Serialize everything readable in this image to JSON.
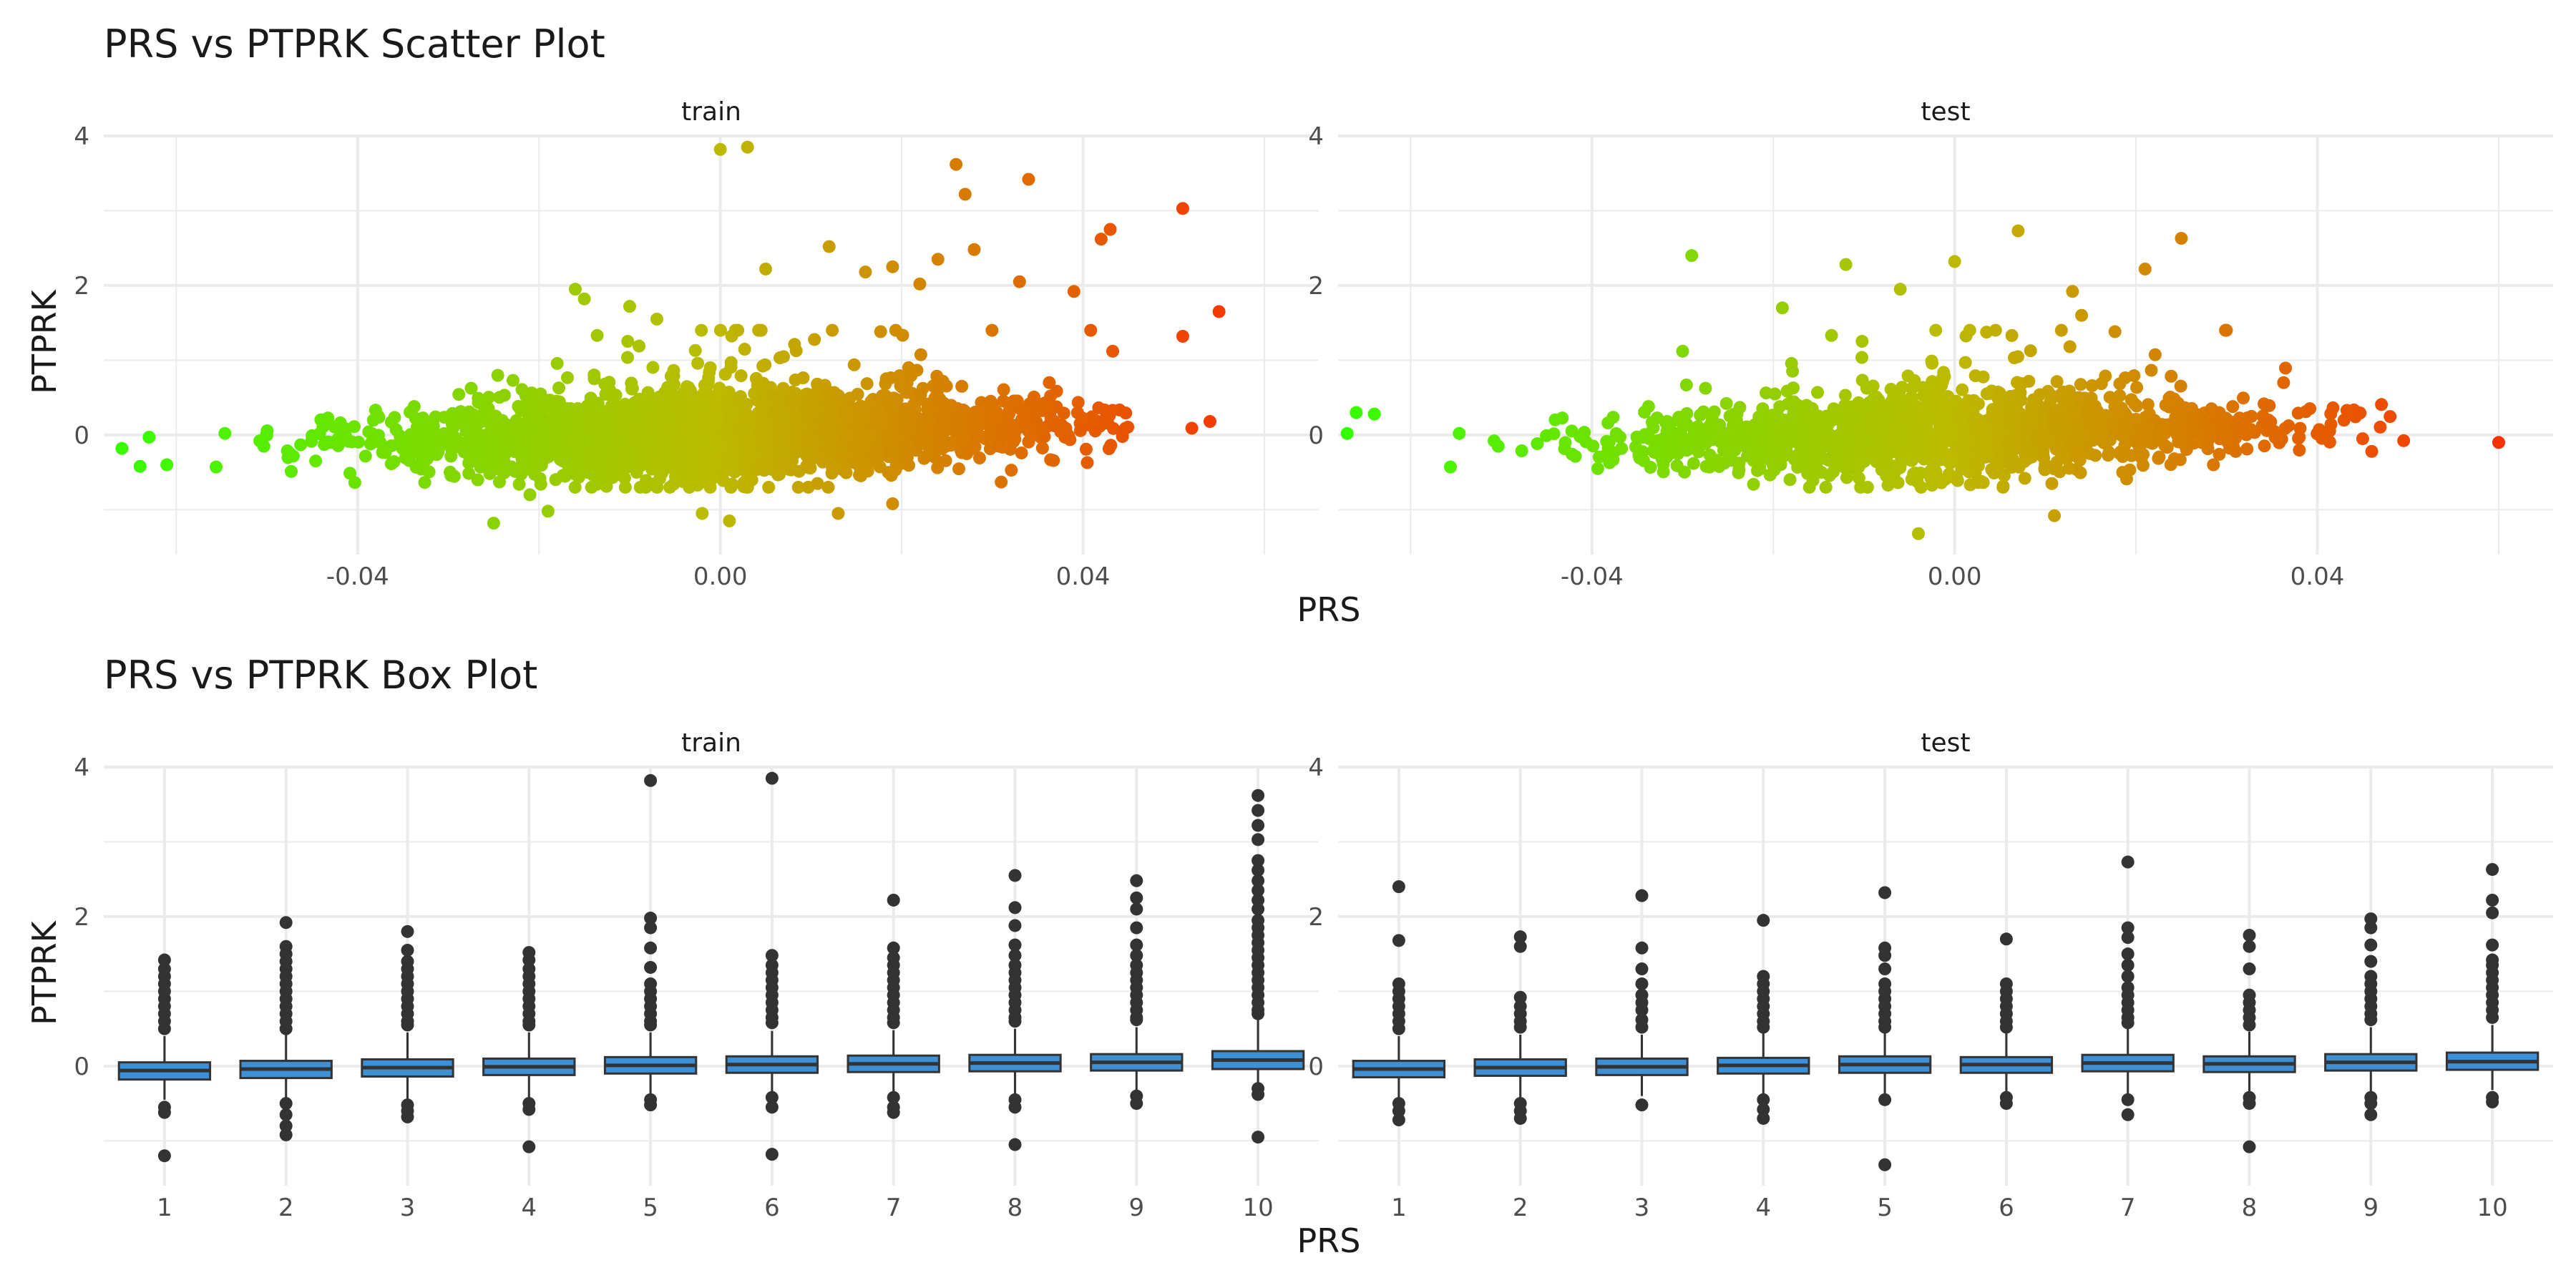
{
  "titles": {
    "scatter": "PRS vs PTPRK Scatter Plot",
    "box": "PRS vs PTPRK Box Plot"
  },
  "panels": [
    "train",
    "test"
  ],
  "axis": {
    "xlabel": "PRS",
    "ylabel": "PTPRK"
  },
  "scatter_ticks": {
    "x": [
      -0.04,
      0.0,
      0.04
    ],
    "x_labels": [
      "-0.04",
      "0.00",
      "0.04"
    ],
    "y": [
      0,
      2,
      4
    ],
    "y_labels": [
      "0",
      "2",
      "4"
    ]
  },
  "box_ticks": {
    "x_labels": [
      "1",
      "2",
      "3",
      "4",
      "5",
      "6",
      "7",
      "8",
      "9",
      "10"
    ],
    "y": [
      0,
      2,
      4
    ],
    "y_labels": [
      "0",
      "2",
      "4"
    ]
  },
  "colors": {
    "gradient_low": "#33ff00",
    "gradient_mid": "#bbbb00",
    "gradient_high": "#ff2200",
    "box_fill": "#3d8fd6",
    "box_stroke": "#333333",
    "outlier": "#333333",
    "grid": "#ebebeb"
  },
  "chart_data": [
    {
      "type": "scatter",
      "title": "PRS vs PTPRK Scatter Plot",
      "xlabel": "PRS",
      "ylabel": "PTPRK",
      "facets": [
        "train",
        "test"
      ],
      "xlim": [
        -0.068,
        0.066
      ],
      "ylim": [
        -1.6,
        4.0
      ],
      "color_scale": "color encodes PRS (green low, red high)",
      "series": [
        {
          "name": "train",
          "x_range": [
            -0.066,
            0.055
          ],
          "points": [
            [
              0.0,
              3.82
            ],
            [
              0.003,
              3.85
            ],
            [
              0.026,
              3.62
            ],
            [
              0.034,
              3.42
            ],
            [
              0.051,
              3.03
            ],
            [
              0.055,
              1.65
            ],
            [
              0.051,
              1.32
            ],
            [
              0.043,
              2.75
            ],
            [
              0.042,
              2.62
            ],
            [
              0.039,
              1.92
            ],
            [
              0.027,
              3.22
            ],
            [
              0.012,
              2.52
            ],
            [
              0.016,
              2.18
            ],
            [
              0.019,
              2.25
            ],
            [
              0.028,
              2.48
            ],
            [
              0.033,
              2.05
            ],
            [
              0.005,
              2.22
            ],
            [
              0.024,
              2.35
            ],
            [
              -0.007,
              1.55
            ],
            [
              -0.016,
              1.95
            ],
            [
              -0.015,
              1.82
            ],
            [
              -0.01,
              1.72
            ],
            [
              0.022,
              2.02
            ],
            [
              -0.025,
              -1.18
            ],
            [
              -0.019,
              -1.02
            ],
            [
              -0.002,
              -1.05
            ],
            [
              0.001,
              -1.15
            ],
            [
              0.013,
              -1.05
            ],
            [
              0.019,
              -0.92
            ],
            [
              -0.021,
              -0.8
            ],
            [
              -0.064,
              -0.42
            ],
            [
              -0.066,
              -0.18
            ],
            [
              -0.063,
              -0.03
            ],
            [
              0.054,
              0.18
            ],
            [
              0.052,
              0.09
            ]
          ]
        },
        {
          "name": "test",
          "x_range": [
            -0.067,
            0.06
          ],
          "points": [
            [
              -0.029,
              2.4
            ],
            [
              0.007,
              2.73
            ],
            [
              -0.012,
              2.28
            ],
            [
              0.0,
              2.32
            ],
            [
              0.025,
              2.63
            ],
            [
              0.021,
              2.22
            ],
            [
              0.013,
              1.92
            ],
            [
              -0.006,
              1.95
            ],
            [
              0.031,
              -0.22
            ],
            [
              0.06,
              -0.1
            ],
            [
              0.046,
              -0.22
            ],
            [
              0.045,
              -0.05
            ],
            [
              -0.004,
              -1.32
            ],
            [
              0.011,
              -1.08
            ],
            [
              -0.067,
              0.02
            ],
            [
              -0.066,
              0.3
            ],
            [
              -0.064,
              0.28
            ],
            [
              -0.03,
              1.12
            ],
            [
              -0.019,
              1.7
            ],
            [
              0.014,
              1.6
            ]
          ]
        }
      ]
    },
    {
      "type": "box",
      "title": "PRS vs PTPRK Box Plot",
      "xlabel": "PRS",
      "ylabel": "PTPRK",
      "categories": [
        "1",
        "2",
        "3",
        "4",
        "5",
        "6",
        "7",
        "8",
        "9",
        "10"
      ],
      "ylim": [
        -1.6,
        4.0
      ],
      "series": [
        {
          "name": "train",
          "boxes": [
            {
              "q1": -0.18,
              "median": -0.06,
              "q3": 0.05,
              "lower": -0.45,
              "upper": 0.4,
              "outliers": [
                1.42,
                1.3,
                1.2,
                1.1,
                1.0,
                0.9,
                0.8,
                0.7,
                0.6,
                0.5,
                -0.55,
                -0.62,
                -1.2
              ]
            },
            {
              "q1": -0.16,
              "median": -0.04,
              "q3": 0.07,
              "lower": -0.45,
              "upper": 0.42,
              "outliers": [
                1.92,
                1.6,
                1.5,
                1.4,
                1.3,
                1.2,
                1.1,
                1.0,
                0.9,
                0.8,
                0.7,
                0.6,
                0.5,
                -0.5,
                -0.65,
                -0.8,
                -0.92
              ]
            },
            {
              "q1": -0.14,
              "median": -0.02,
              "q3": 0.09,
              "lower": -0.45,
              "upper": 0.45,
              "outliers": [
                1.8,
                1.55,
                1.4,
                1.3,
                1.2,
                1.1,
                1.0,
                0.9,
                0.8,
                0.7,
                0.6,
                0.55,
                -0.52,
                -0.6,
                -0.68
              ]
            },
            {
              "q1": -0.12,
              "median": -0.01,
              "q3": 0.1,
              "lower": -0.45,
              "upper": 0.45,
              "outliers": [
                1.52,
                1.42,
                1.3,
                1.2,
                1.1,
                1.0,
                0.9,
                0.8,
                0.7,
                0.6,
                0.55,
                -0.5,
                -0.58,
                -1.08
              ]
            },
            {
              "q1": -0.1,
              "median": 0.01,
              "q3": 0.12,
              "lower": -0.4,
              "upper": 0.45,
              "outliers": [
                3.82,
                1.98,
                1.85,
                1.58,
                1.32,
                1.1,
                1.0,
                0.9,
                0.8,
                0.7,
                0.6,
                0.55,
                -0.45,
                -0.52
              ]
            },
            {
              "q1": -0.09,
              "median": 0.02,
              "q3": 0.13,
              "lower": -0.4,
              "upper": 0.47,
              "outliers": [
                3.85,
                1.48,
                1.35,
                1.25,
                1.15,
                1.05,
                0.95,
                0.85,
                0.75,
                0.65,
                0.58,
                -0.42,
                -0.55,
                -1.18
              ]
            },
            {
              "q1": -0.08,
              "median": 0.03,
              "q3": 0.14,
              "lower": -0.4,
              "upper": 0.48,
              "outliers": [
                2.22,
                1.58,
                1.45,
                1.35,
                1.25,
                1.15,
                1.05,
                0.95,
                0.85,
                0.75,
                0.65,
                0.58,
                -0.42,
                -0.55,
                -0.62
              ]
            },
            {
              "q1": -0.07,
              "median": 0.04,
              "q3": 0.15,
              "lower": -0.4,
              "upper": 0.5,
              "outliers": [
                2.55,
                2.12,
                1.88,
                1.62,
                1.48,
                1.35,
                1.25,
                1.15,
                1.05,
                0.95,
                0.85,
                0.75,
                0.65,
                0.6,
                -0.45,
                -0.55,
                -1.05
              ]
            },
            {
              "q1": -0.06,
              "median": 0.05,
              "q3": 0.16,
              "lower": -0.35,
              "upper": 0.52,
              "outliers": [
                2.48,
                2.25,
                2.1,
                1.85,
                1.62,
                1.48,
                1.35,
                1.25,
                1.15,
                1.05,
                0.95,
                0.85,
                0.75,
                0.65,
                0.62,
                -0.4,
                -0.5
              ]
            },
            {
              "q1": -0.04,
              "median": 0.08,
              "q3": 0.2,
              "lower": -0.3,
              "upper": 0.62,
              "outliers": [
                3.62,
                3.42,
                3.22,
                3.03,
                2.75,
                2.62,
                2.48,
                2.35,
                2.22,
                2.1,
                1.95,
                1.85,
                1.75,
                1.65,
                1.55,
                1.45,
                1.35,
                1.25,
                1.15,
                1.05,
                0.95,
                0.85,
                0.75,
                0.7,
                -0.3,
                -0.38,
                -0.95
              ]
            }
          ]
        },
        {
          "name": "test",
          "boxes": [
            {
              "q1": -0.15,
              "median": -0.04,
              "q3": 0.07,
              "lower": -0.45,
              "upper": 0.4,
              "outliers": [
                2.4,
                1.68,
                1.1,
                1.0,
                0.9,
                0.8,
                0.7,
                0.6,
                0.5,
                -0.5,
                -0.6,
                -0.72
              ]
            },
            {
              "q1": -0.13,
              "median": -0.02,
              "q3": 0.09,
              "lower": -0.45,
              "upper": 0.42,
              "outliers": [
                1.73,
                1.6,
                0.92,
                0.8,
                0.7,
                0.6,
                0.52,
                -0.5,
                -0.6,
                -0.7
              ]
            },
            {
              "q1": -0.12,
              "median": -0.01,
              "q3": 0.1,
              "lower": -0.4,
              "upper": 0.42,
              "outliers": [
                2.28,
                1.58,
                1.3,
                1.1,
                0.95,
                0.85,
                0.75,
                0.62,
                0.52,
                -0.52
              ]
            },
            {
              "q1": -0.1,
              "median": 0.01,
              "q3": 0.11,
              "lower": -0.4,
              "upper": 0.44,
              "outliers": [
                1.95,
                1.2,
                1.1,
                1.0,
                0.9,
                0.8,
                0.7,
                0.6,
                0.52,
                -0.45,
                -0.58,
                -0.7
              ]
            },
            {
              "q1": -0.09,
              "median": 0.02,
              "q3": 0.13,
              "lower": -0.4,
              "upper": 0.46,
              "outliers": [
                2.32,
                1.58,
                1.48,
                1.3,
                1.1,
                1.0,
                0.9,
                0.8,
                0.7,
                0.6,
                0.52,
                -0.45,
                -1.32
              ]
            },
            {
              "q1": -0.09,
              "median": 0.02,
              "q3": 0.12,
              "lower": -0.4,
              "upper": 0.45,
              "outliers": [
                1.7,
                1.1,
                1.0,
                0.9,
                0.8,
                0.7,
                0.6,
                0.52,
                -0.42,
                -0.5
              ]
            },
            {
              "q1": -0.07,
              "median": 0.04,
              "q3": 0.15,
              "lower": -0.38,
              "upper": 0.5,
              "outliers": [
                2.73,
                1.85,
                1.72,
                1.5,
                1.35,
                1.2,
                1.05,
                0.95,
                0.85,
                0.75,
                0.65,
                0.58,
                -0.45,
                -0.65
              ]
            },
            {
              "q1": -0.08,
              "median": 0.03,
              "q3": 0.13,
              "lower": -0.38,
              "upper": 0.46,
              "outliers": [
                1.75,
                1.6,
                1.3,
                0.95,
                0.85,
                0.75,
                0.65,
                0.55,
                -0.42,
                -0.5,
                -1.08
              ]
            },
            {
              "q1": -0.06,
              "median": 0.05,
              "q3": 0.16,
              "lower": -0.35,
              "upper": 0.52,
              "outliers": [
                1.97,
                1.85,
                1.62,
                1.4,
                1.2,
                1.1,
                1.0,
                0.9,
                0.8,
                0.7,
                0.62,
                -0.42,
                -0.5,
                -0.65
              ]
            },
            {
              "q1": -0.05,
              "median": 0.06,
              "q3": 0.18,
              "lower": -0.32,
              "upper": 0.55,
              "outliers": [
                2.63,
                2.22,
                2.05,
                1.62,
                1.42,
                1.35,
                1.25,
                1.15,
                1.05,
                0.95,
                0.85,
                0.75,
                0.65,
                -0.42,
                -0.48
              ]
            }
          ]
        }
      ]
    }
  ]
}
